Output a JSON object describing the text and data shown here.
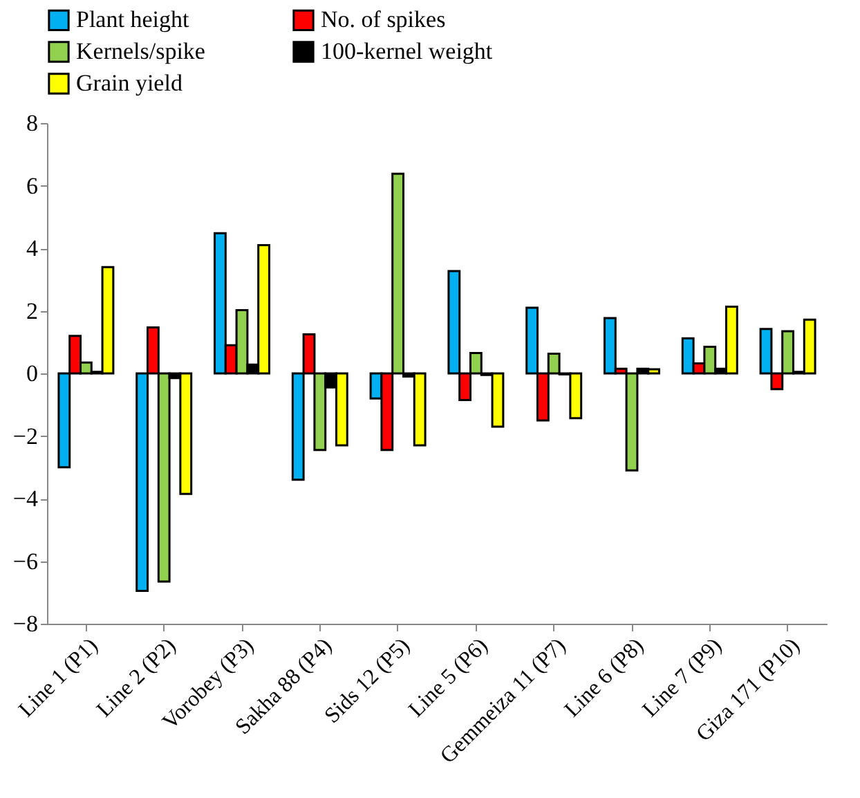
{
  "chart_data": {
    "type": "bar",
    "categories": [
      "Line 1 (P1)",
      "Line 2 (P2)",
      "Vorobey (P3)",
      "Sakha 88 (P4)",
      "Sids 12 (P5)",
      "Line 5 (P6)",
      "Gemmeiza 11 (P7)",
      "Line 6 (P8)",
      "Line 7 (P9)",
      "Giza 171 (P10)"
    ],
    "series": [
      {
        "name": "Plant height",
        "color": "#00b0f0",
        "values": [
          -3.0,
          -6.95,
          4.48,
          -3.4,
          -0.8,
          3.27,
          2.1,
          1.77,
          1.12,
          1.42
        ]
      },
      {
        "name": "No. of spikes",
        "color": "#ff0000",
        "values": [
          1.2,
          1.47,
          0.9,
          1.25,
          -2.45,
          -0.85,
          -1.5,
          0.15,
          0.32,
          -0.5
        ]
      },
      {
        "name": "Kernels/spike",
        "color": "#92d050",
        "values": [
          0.35,
          -6.65,
          2.02,
          -2.45,
          6.38,
          0.65,
          0.63,
          -3.1,
          0.85,
          1.35
        ]
      },
      {
        "name": "100-kernel weight",
        "color": "#000000",
        "values": [
          0.05,
          -0.15,
          0.28,
          -0.45,
          -0.1,
          -0.05,
          -0.03,
          0.15,
          0.15,
          0.05
        ]
      },
      {
        "name": "Grain yield",
        "color": "#ffff00",
        "values": [
          3.4,
          -3.85,
          4.1,
          -2.3,
          -2.3,
          -1.7,
          -1.43,
          0.13,
          2.13,
          1.72
        ]
      }
    ],
    "ylim": [
      -8,
      8
    ],
    "yticks": [
      -8,
      -6,
      -4,
      -2,
      0,
      2,
      4,
      6,
      8
    ],
    "grid": false,
    "legend": "top"
  }
}
